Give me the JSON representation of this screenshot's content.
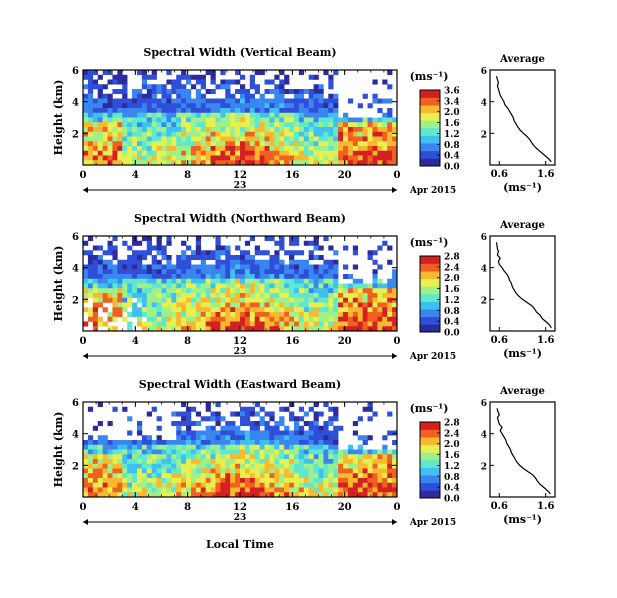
{
  "figure": {
    "date_label": "Apr 2015",
    "bottom_xlabel": "Local Time"
  },
  "chart_data": [
    {
      "type": "heatmap",
      "title": "Spectral Width (Vertical Beam)",
      "ylabel": "Height (km)",
      "xlabel": "",
      "x_ticks": [
        "0",
        "4",
        "8",
        "12",
        "16",
        "20",
        "0"
      ],
      "day_label": "23",
      "date_label": "Apr 2015",
      "y_ticks": [
        "6",
        "4",
        "2"
      ],
      "ylim": [
        0,
        6
      ],
      "xlim": [
        0,
        24
      ],
      "colorbar": {
        "unit": "(ms⁻¹)",
        "ticks": [
          "3.6",
          "3.4",
          "2.0",
          "1.6",
          "1.2",
          "0.8",
          "0.4",
          "0.0"
        ],
        "range": [
          0.0,
          3.6
        ]
      },
      "colormap": [
        "#2b2b9e",
        "#2f4fd8",
        "#3a86f0",
        "#3fc0f0",
        "#5fe8d0",
        "#9df08a",
        "#e8f050",
        "#f8b830",
        "#f06020",
        "#d42020"
      ],
      "profile": {
        "title": "Average",
        "xlabel": "(ms⁻¹)",
        "x_ticks": [
          "0.6",
          "1.6"
        ],
        "y_ticks": [
          "6",
          "4",
          "2"
        ],
        "xlim": [
          0.4,
          1.8
        ],
        "ylim": [
          0,
          6
        ],
        "heights": [
          0.2,
          0.4,
          0.6,
          0.8,
          1.0,
          1.2,
          1.4,
          1.6,
          1.8,
          2.0,
          2.2,
          2.4,
          2.6,
          2.8,
          3.0,
          3.2,
          3.4,
          3.6,
          3.8,
          4.0,
          4.2,
          4.4,
          4.6,
          4.8,
          5.0,
          5.2,
          5.4,
          5.6
        ],
        "values": [
          1.72,
          1.66,
          1.58,
          1.5,
          1.42,
          1.35,
          1.3,
          1.26,
          1.2,
          1.12,
          1.05,
          1.0,
          0.96,
          0.92,
          0.9,
          0.86,
          0.82,
          0.78,
          0.72,
          0.7,
          0.66,
          0.62,
          0.6,
          0.58,
          0.56,
          0.58,
          0.56,
          0.54
        ]
      }
    },
    {
      "type": "heatmap",
      "title": "Spectral Width (Northward Beam)",
      "ylabel": "Height (km)",
      "xlabel": "",
      "x_ticks": [
        "0",
        "4",
        "8",
        "12",
        "16",
        "20",
        "0"
      ],
      "day_label": "23",
      "date_label": "Apr 2015",
      "y_ticks": [
        "6",
        "4",
        "2"
      ],
      "ylim": [
        0,
        6
      ],
      "xlim": [
        0,
        24
      ],
      "colorbar": {
        "unit": "(ms⁻¹)",
        "ticks": [
          "2.8",
          "2.4",
          "2.0",
          "1.6",
          "1.2",
          "0.8",
          "0.4",
          "0.0"
        ],
        "range": [
          0.0,
          2.8
        ]
      },
      "colormap": [
        "#2b2b9e",
        "#2f4fd8",
        "#3a86f0",
        "#3fc0f0",
        "#5fe8d0",
        "#9df08a",
        "#e8f050",
        "#f8b830",
        "#f06020",
        "#d42020"
      ],
      "profile": {
        "title": "Average",
        "xlabel": "(ms⁻¹)",
        "x_ticks": [
          "0.6",
          "1.6"
        ],
        "y_ticks": [
          "6",
          "4",
          "2"
        ],
        "xlim": [
          0.4,
          1.8
        ],
        "ylim": [
          0,
          6
        ],
        "heights": [
          0.2,
          0.4,
          0.6,
          0.8,
          1.0,
          1.2,
          1.4,
          1.6,
          1.8,
          2.0,
          2.2,
          2.4,
          2.6,
          2.8,
          3.0,
          3.2,
          3.4,
          3.6,
          3.8,
          4.0,
          4.2,
          4.4,
          4.6,
          4.8,
          5.0,
          5.2,
          5.4,
          5.6
        ],
        "values": [
          1.72,
          1.68,
          1.6,
          1.52,
          1.48,
          1.4,
          1.36,
          1.3,
          1.2,
          1.1,
          1.02,
          0.96,
          0.92,
          0.88,
          0.86,
          0.82,
          0.8,
          0.76,
          0.7,
          0.66,
          0.6,
          0.58,
          0.62,
          0.56,
          0.58,
          0.56,
          0.55,
          0.54
        ]
      }
    },
    {
      "type": "heatmap",
      "title": "Spectral Width (Eastward Beam)",
      "ylabel": "Height (km)",
      "xlabel": "Local Time",
      "x_ticks": [
        "0",
        "4",
        "8",
        "12",
        "16",
        "20",
        "0"
      ],
      "day_label": "23",
      "date_label": "Apr 2015",
      "y_ticks": [
        "6",
        "4",
        "2"
      ],
      "ylim": [
        0,
        6
      ],
      "xlim": [
        0,
        24
      ],
      "colorbar": {
        "unit": "(ms⁻¹)",
        "ticks": [
          "2.8",
          "2.4",
          "2.0",
          "1.6",
          "1.2",
          "0.8",
          "0.4",
          "0.0"
        ],
        "range": [
          0.0,
          2.8
        ]
      },
      "colormap": [
        "#2b2b9e",
        "#2f4fd8",
        "#3a86f0",
        "#3fc0f0",
        "#5fe8d0",
        "#9df08a",
        "#e8f050",
        "#f8b830",
        "#f06020",
        "#d42020"
      ],
      "profile": {
        "title": "Average",
        "xlabel": "(ms⁻¹)",
        "x_ticks": [
          "0.6",
          "1.6"
        ],
        "y_ticks": [
          "6",
          "4",
          "2"
        ],
        "xlim": [
          0.4,
          1.8
        ],
        "ylim": [
          0,
          6
        ],
        "heights": [
          0.2,
          0.4,
          0.6,
          0.8,
          1.0,
          1.2,
          1.4,
          1.6,
          1.8,
          2.0,
          2.2,
          2.4,
          2.6,
          2.8,
          3.0,
          3.2,
          3.4,
          3.6,
          3.8,
          4.0,
          4.2,
          4.4,
          4.6,
          4.8,
          5.0,
          5.2,
          5.4,
          5.6
        ],
        "values": [
          1.7,
          1.64,
          1.56,
          1.48,
          1.42,
          1.38,
          1.32,
          1.22,
          1.12,
          1.04,
          0.98,
          0.94,
          0.9,
          0.86,
          0.84,
          0.8,
          0.76,
          0.74,
          0.7,
          0.66,
          0.62,
          0.66,
          0.6,
          0.58,
          0.56,
          0.6,
          0.57,
          0.55
        ]
      }
    }
  ]
}
